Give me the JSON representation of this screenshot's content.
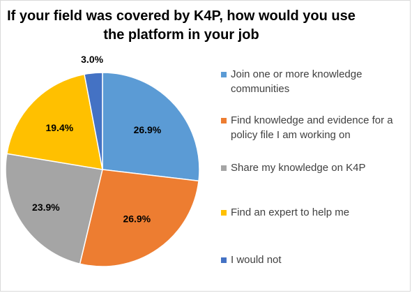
{
  "chart_data": {
    "type": "pie",
    "title_lines": [
      "If your field was covered by K4P, how would you use",
      "the platform in your job"
    ],
    "slices": [
      {
        "label": "Join one or more knowledge communities",
        "value": 26.9,
        "display": "26.9%",
        "color": "#5B9BD5"
      },
      {
        "label": "Find knowledge and evidence for a policy file I am working on",
        "value": 26.9,
        "display": "26.9%",
        "color": "#ED7D31"
      },
      {
        "label": "Share my knowledge on K4P",
        "value": 23.9,
        "display": "23.9%",
        "color": "#A5A5A5"
      },
      {
        "label": "Find an expert to help me",
        "value": 19.4,
        "display": "19.4%",
        "color": "#FFC000"
      },
      {
        "label": "I would not",
        "value": 3.0,
        "display": "3.0%",
        "color": "#4472C4"
      }
    ],
    "legend_placement": "right"
  }
}
